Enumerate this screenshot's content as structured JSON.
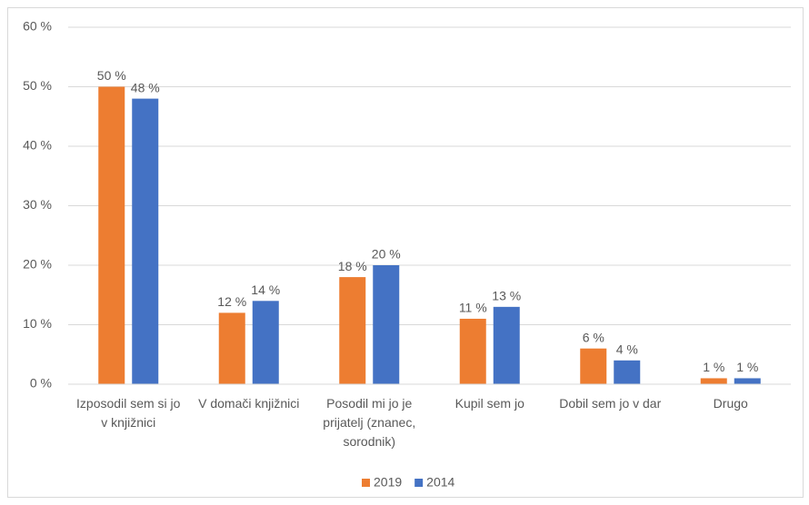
{
  "chart_data": {
    "type": "bar",
    "categories": [
      "Izposodil sem si jo v knjižnici",
      "V domači knjižnici",
      "Posodil mi jo je prijatelj (znanec, sorodnik)",
      "Kupil sem jo",
      "Dobil sem jo v dar",
      "Drugo"
    ],
    "series": [
      {
        "name": "2019",
        "color": "#ed7d31",
        "values": [
          50,
          12,
          18,
          11,
          6,
          1
        ],
        "value_labels": [
          "50 %",
          "12 %",
          "18 %",
          "11 %",
          "6 %",
          "1 %"
        ]
      },
      {
        "name": "2014",
        "color": "#4472c4",
        "values": [
          48,
          14,
          20,
          13,
          4,
          1
        ],
        "value_labels": [
          "48 %",
          "14 %",
          "20 %",
          "13 %",
          "4 %",
          "1 %"
        ]
      }
    ],
    "ylim": [
      0,
      60
    ],
    "yticks": [
      {
        "value": 0,
        "label": "0 %"
      },
      {
        "value": 10,
        "label": "10 %"
      },
      {
        "value": 20,
        "label": "20 %"
      },
      {
        "value": 30,
        "label": "30 %"
      },
      {
        "value": 40,
        "label": "40 %"
      },
      {
        "value": 50,
        "label": "50 %"
      },
      {
        "value": 60,
        "label": "60 %"
      }
    ],
    "grid": true,
    "legend": "bottom"
  }
}
